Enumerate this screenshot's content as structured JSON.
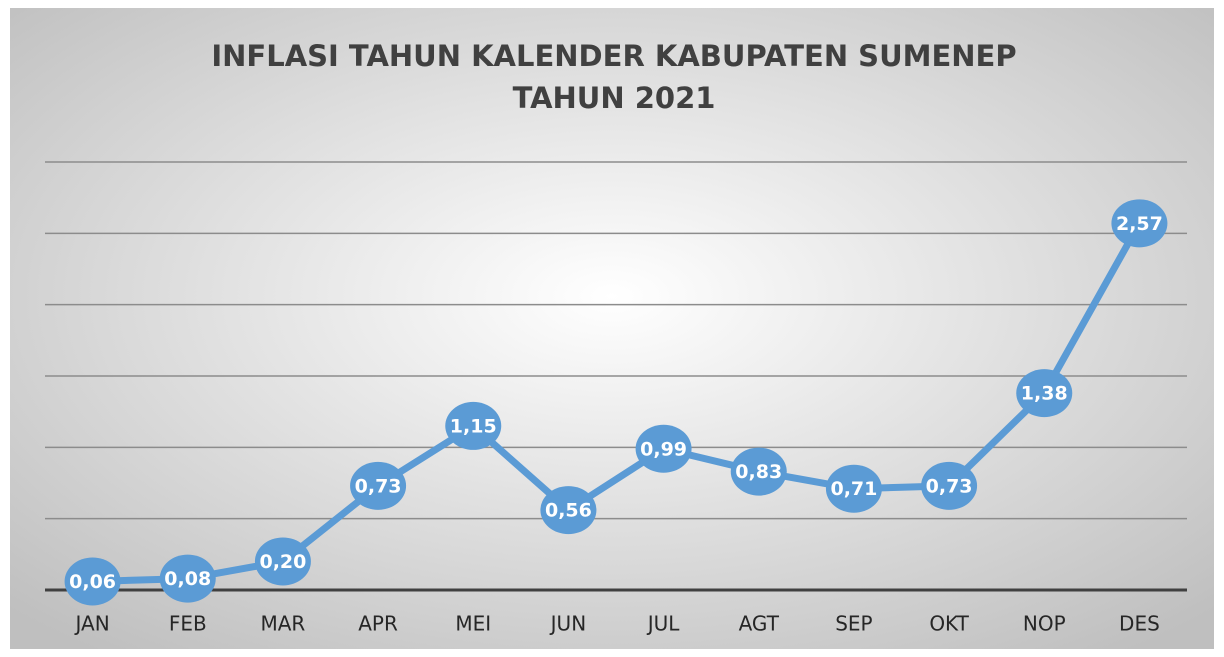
{
  "chart_data": {
    "type": "line",
    "title": [
      "INFLASI TAHUN KALENDER KABUPATEN SUMENEP",
      "TAHUN 2021"
    ],
    "categories": [
      "JAN",
      "FEB",
      "MAR",
      "APR",
      "MEI",
      "JUN",
      "JUL",
      "AGT",
      "SEP",
      "OKT",
      "NOP",
      "DES"
    ],
    "values": [
      0.06,
      0.08,
      0.2,
      0.73,
      1.15,
      0.56,
      0.99,
      0.83,
      0.71,
      0.73,
      1.38,
      2.57
    ],
    "value_labels": [
      "0,06",
      "0,08",
      "0,20",
      "0,73",
      "1,15",
      "0,56",
      "0,99",
      "0,83",
      "0,71",
      "0,73",
      "1,38",
      "2,57"
    ],
    "color": "#5b9bd5",
    "ylim": [
      0,
      3
    ],
    "yticks": [
      0,
      0.5,
      1,
      1.5,
      2,
      2.5,
      3
    ],
    "grid": true
  }
}
